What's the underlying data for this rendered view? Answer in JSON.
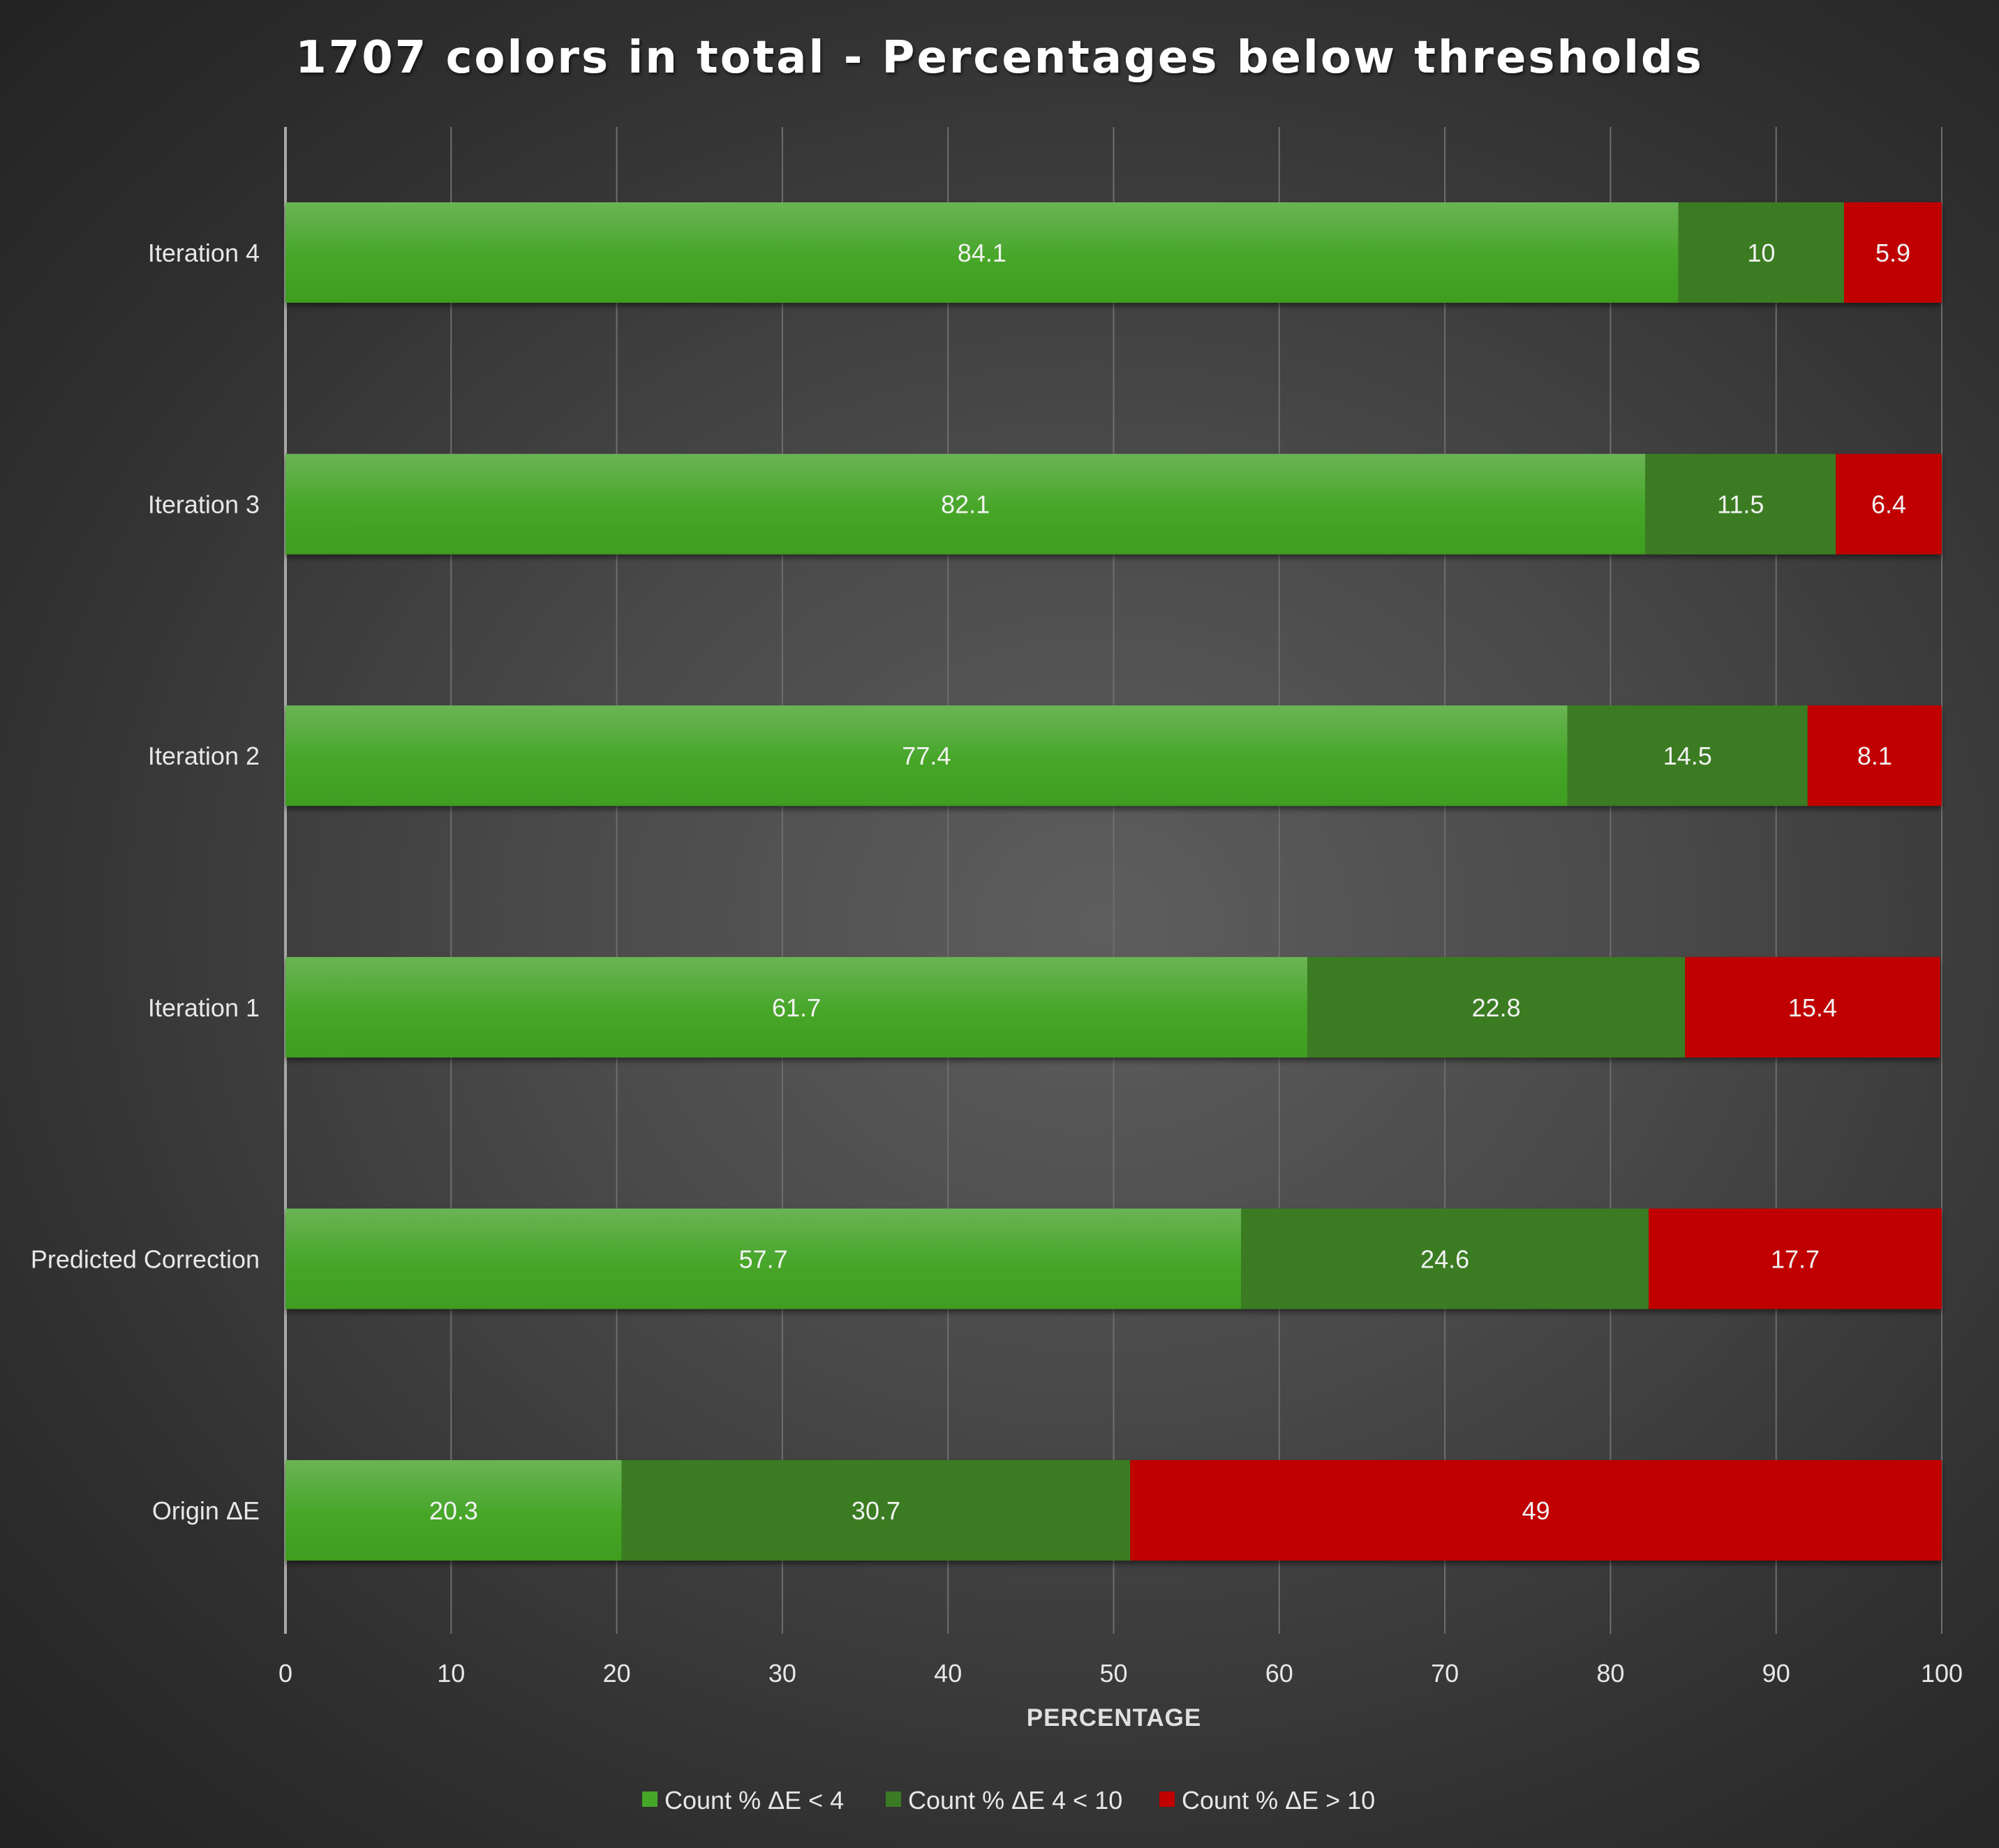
{
  "chart_data": {
    "type": "bar",
    "orientation": "horizontal",
    "stacked": true,
    "title": "1707 colors in total - Percentages below thresholds",
    "xlabel": "PERCENTAGE",
    "ylabel": "",
    "xlim": [
      0,
      100
    ],
    "x_ticks": [
      0,
      10,
      20,
      30,
      40,
      50,
      60,
      70,
      80,
      90,
      100
    ],
    "grid": true,
    "legend_position": "bottom",
    "categories": [
      "Iteration 4",
      "Iteration 3",
      "Iteration 2",
      "Iteration 1",
      "Predicted Correction",
      "Origin ΔE"
    ],
    "series": [
      {
        "name": "Count % ΔE < 4",
        "color": "#46a628",
        "values": [
          84.1,
          82.1,
          77.4,
          61.7,
          57.7,
          20.3
        ],
        "labels": [
          "84.1",
          "82.1",
          "77.4",
          "61.7",
          "57.7",
          "20.3"
        ]
      },
      {
        "name": "Count % ΔE 4 < 10",
        "color": "#3a7b23",
        "values": [
          10,
          11.5,
          14.5,
          22.8,
          24.6,
          30.7
        ],
        "labels": [
          "10",
          "11.5",
          "14.5",
          "22.8",
          "24.6",
          "30.7"
        ]
      },
      {
        "name": "Count % ΔE > 10",
        "color": "#c00000",
        "values": [
          5.9,
          6.4,
          8.1,
          15.4,
          17.7,
          49
        ],
        "labels": [
          "5.9",
          "6.4",
          "8.1",
          "15.4",
          "17.7",
          "49"
        ]
      }
    ]
  }
}
